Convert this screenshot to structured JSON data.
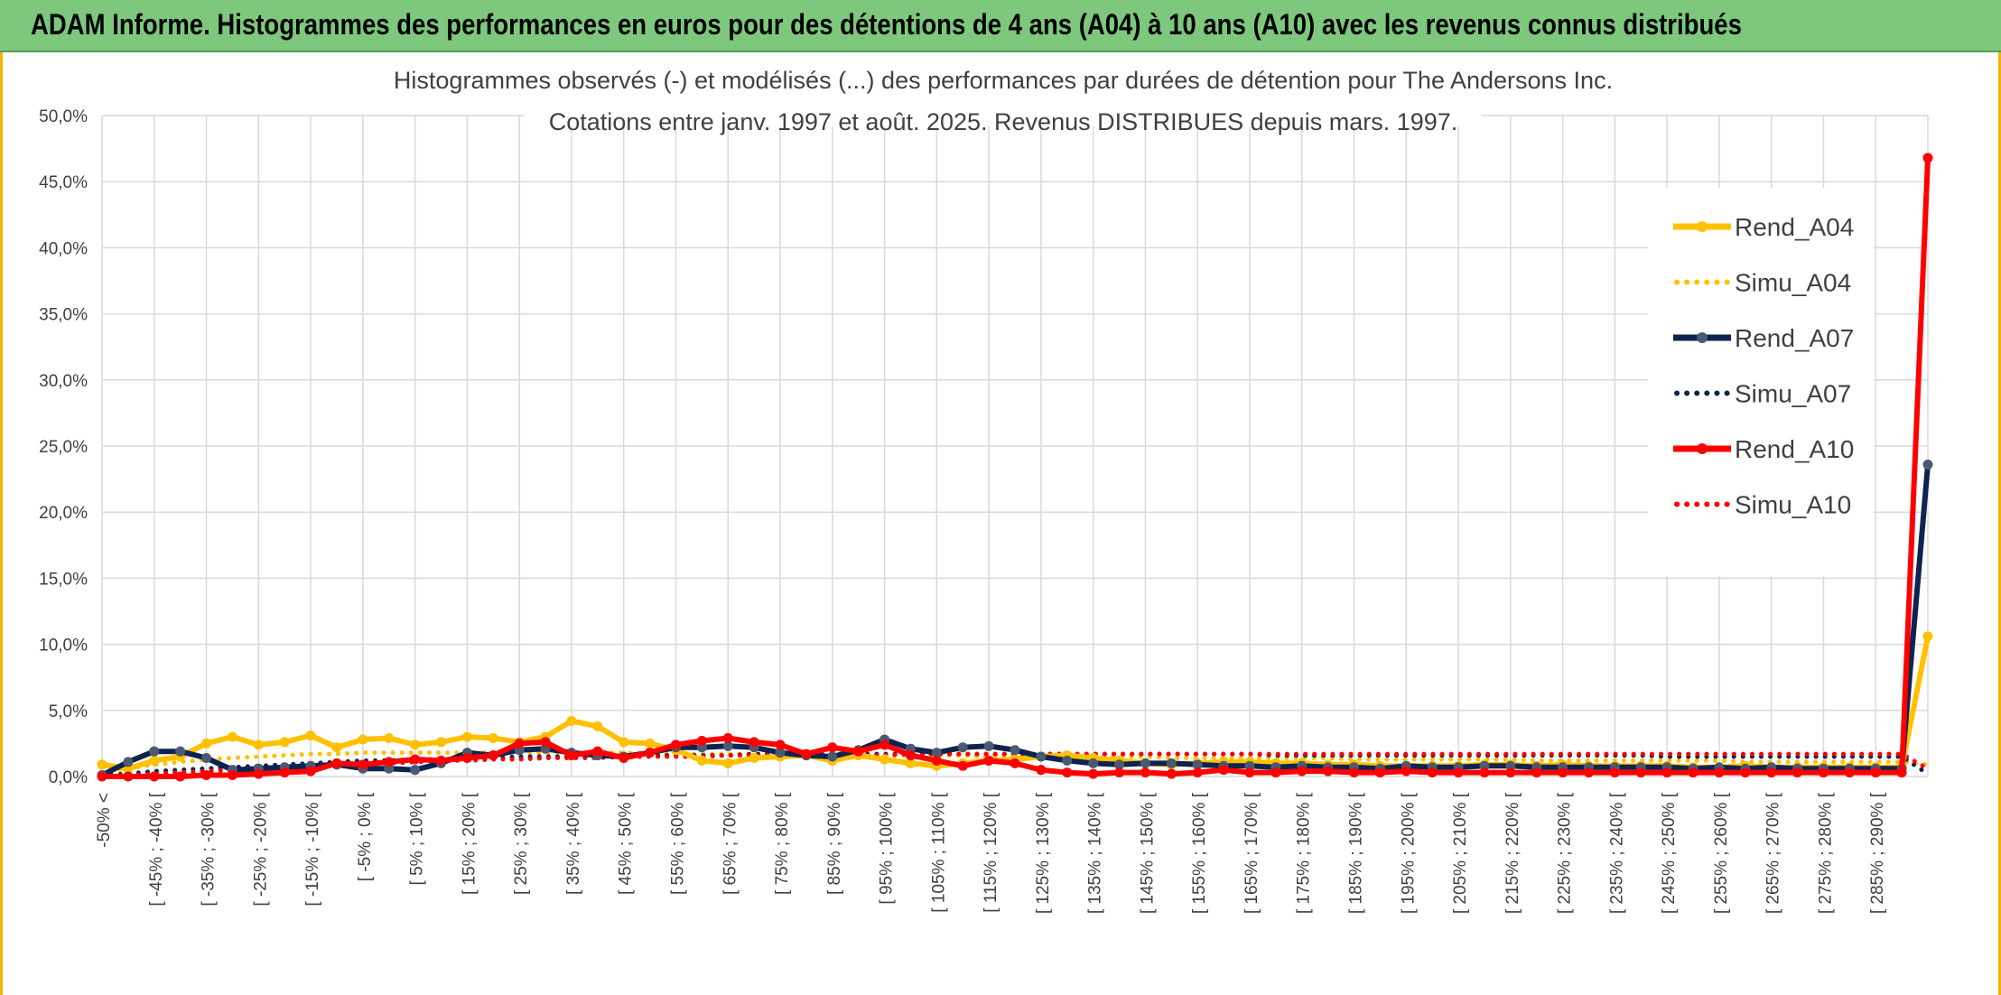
{
  "banner": {
    "title": "ADAM Informe. Histogrammes des performances en euros pour des détentions de 4 ans (A04) à 10 ans (A10) avec les revenus connus distribués"
  },
  "chart_data": {
    "type": "line",
    "title_lines": [
      "Histogrammes observés (-) et modélisés (...) des performances par durées de détention pour The Andersons Inc.",
      "Cotations entre janv. 1997 et août. 2025. Revenus DISTRIBUES depuis mars. 1997."
    ],
    "xlabel": "",
    "ylabel": "",
    "ylim": [
      0,
      50
    ],
    "y_ticks": [
      "0,0%",
      "5,0%",
      "10,0%",
      "15,0%",
      "20,0%",
      "25,0%",
      "30,0%",
      "35,0%",
      "40,0%",
      "45,0%",
      "50,0%"
    ],
    "legend_position": "right",
    "grid": true,
    "x_tick_labels": [
      "-50% <",
      "[ -45% ; -40% [",
      "[ -35% ; -30% [",
      "[ -25% ; -20% [",
      "[ -15% ; -10% [",
      "[ -5% ; 0% [",
      "[ 5% ; 10% [",
      "[ 15% ; 20% [",
      "[ 25% ; 30% [",
      "[ 35% ; 40% [",
      "[ 45% ; 50% [",
      "[ 55% ; 60% [",
      "[ 65% ; 70% [",
      "[ 75% ; 80% [",
      "[ 85% ; 90% [",
      "[ 95% ; 100% [",
      "[ 105% ; 110% [",
      "[ 115% ; 120% [",
      "[ 125% ; 130% [",
      "[ 135% ; 140% [",
      "[ 145% ; 150% [",
      "[ 155% ; 160% [",
      "[ 165% ; 170% [",
      "[ 175% ; 180% [",
      "[ 185% ; 190% [",
      "[ 195% ; 200% [",
      "[ 205% ; 210% [",
      "[ 215% ; 220% [",
      "[ 225% ; 230% [",
      "[ 235% ; 240% [",
      "[ 245% ; 250% [",
      "[ 255% ; 260% [",
      "[ 265% ; 270% [",
      "[ 275% ; 280% [",
      "[ 285% ; 290% ["
    ],
    "num_points": 71,
    "series": [
      {
        "name": "Rend_A04",
        "style": "solid",
        "color": "#FFC000",
        "values": [
          0.9,
          0.6,
          1.2,
          1.5,
          2.5,
          3.0,
          2.4,
          2.6,
          3.1,
          2.2,
          2.8,
          2.9,
          2.4,
          2.6,
          3.0,
          2.9,
          2.6,
          3.0,
          4.2,
          3.8,
          2.6,
          2.5,
          2.0,
          1.2,
          1.0,
          1.4,
          1.5,
          1.6,
          1.2,
          1.6,
          1.3,
          1.0,
          0.8,
          1.0,
          1.2,
          1.3,
          1.5,
          1.6,
          1.4,
          1.2,
          1.0,
          0.9,
          1.0,
          1.1,
          1.1,
          1.0,
          1.0,
          0.9,
          0.9,
          0.8,
          0.8,
          0.8,
          0.8,
          0.9,
          0.9,
          0.8,
          0.9,
          0.8,
          0.8,
          0.8,
          0.8,
          0.7,
          0.7,
          0.8,
          0.7,
          0.7,
          0.7,
          0.7,
          0.7,
          0.7,
          10.6
        ]
      },
      {
        "name": "Simu_A04",
        "style": "dotted",
        "color": "#FFC000",
        "values": [
          0.3,
          0.6,
          0.9,
          1.1,
          1.3,
          1.4,
          1.5,
          1.6,
          1.7,
          1.7,
          1.8,
          1.8,
          1.8,
          1.8,
          1.8,
          1.8,
          1.8,
          1.8,
          1.8,
          1.8,
          1.8,
          1.7,
          1.7,
          1.7,
          1.7,
          1.7,
          1.7,
          1.6,
          1.6,
          1.6,
          1.6,
          1.6,
          1.6,
          1.6,
          1.5,
          1.5,
          1.5,
          1.5,
          1.5,
          1.5,
          1.5,
          1.4,
          1.4,
          1.4,
          1.4,
          1.4,
          1.4,
          1.4,
          1.3,
          1.3,
          1.3,
          1.3,
          1.3,
          1.3,
          1.3,
          1.2,
          1.2,
          1.2,
          1.2,
          1.2,
          1.2,
          1.2,
          1.2,
          1.1,
          1.1,
          1.1,
          1.1,
          1.1,
          1.1,
          1.1,
          0.9
        ]
      },
      {
        "name": "Rend_A07",
        "style": "solid",
        "color": "#0F2350",
        "values": [
          0.1,
          1.1,
          1.9,
          1.9,
          1.4,
          0.5,
          0.6,
          0.7,
          0.8,
          0.9,
          0.6,
          0.6,
          0.5,
          1.0,
          1.8,
          1.6,
          2.0,
          2.1,
          1.8,
          1.6,
          1.5,
          1.8,
          2.2,
          2.2,
          2.3,
          2.2,
          1.8,
          1.6,
          1.5,
          2.0,
          2.8,
          2.1,
          1.8,
          2.2,
          2.3,
          2.0,
          1.5,
          1.2,
          1.0,
          0.9,
          1.0,
          1.0,
          0.9,
          0.8,
          0.8,
          0.7,
          0.8,
          0.7,
          0.7,
          0.6,
          0.8,
          0.7,
          0.7,
          0.8,
          0.8,
          0.7,
          0.7,
          0.7,
          0.7,
          0.7,
          0.7,
          0.6,
          0.7,
          0.6,
          0.7,
          0.6,
          0.6,
          0.6,
          0.6,
          0.6,
          23.6
        ]
      },
      {
        "name": "Simu_A07",
        "style": "dotted",
        "color": "#0F2350",
        "values": [
          0.1,
          0.2,
          0.4,
          0.5,
          0.6,
          0.7,
          0.8,
          0.9,
          1.0,
          1.1,
          1.2,
          1.2,
          1.3,
          1.3,
          1.4,
          1.4,
          1.5,
          1.5,
          1.5,
          1.6,
          1.6,
          1.6,
          1.6,
          1.6,
          1.6,
          1.7,
          1.7,
          1.7,
          1.7,
          1.7,
          1.7,
          1.7,
          1.7,
          1.7,
          1.7,
          1.7,
          1.7,
          1.7,
          1.7,
          1.7,
          1.7,
          1.7,
          1.7,
          1.7,
          1.7,
          1.6,
          1.6,
          1.6,
          1.6,
          1.6,
          1.6,
          1.6,
          1.6,
          1.6,
          1.6,
          1.6,
          1.6,
          1.6,
          1.6,
          1.6,
          1.5,
          1.5,
          1.5,
          1.5,
          1.5,
          1.5,
          1.5,
          1.5,
          1.5,
          1.5,
          0.2
        ]
      },
      {
        "name": "Rend_A10",
        "style": "solid",
        "color": "#FF0000",
        "values": [
          0.0,
          0.0,
          0.0,
          0.0,
          0.1,
          0.1,
          0.2,
          0.3,
          0.4,
          1.0,
          0.9,
          1.1,
          1.3,
          1.2,
          1.4,
          1.6,
          2.5,
          2.6,
          1.6,
          1.9,
          1.4,
          1.8,
          2.4,
          2.7,
          2.9,
          2.6,
          2.4,
          1.7,
          2.2,
          1.9,
          2.4,
          1.6,
          1.2,
          0.8,
          1.2,
          1.0,
          0.5,
          0.3,
          0.2,
          0.3,
          0.3,
          0.2,
          0.3,
          0.5,
          0.3,
          0.3,
          0.4,
          0.4,
          0.3,
          0.3,
          0.4,
          0.3,
          0.3,
          0.3,
          0.3,
          0.3,
          0.3,
          0.3,
          0.3,
          0.3,
          0.3,
          0.3,
          0.3,
          0.3,
          0.3,
          0.3,
          0.3,
          0.3,
          0.3,
          0.3,
          46.8
        ]
      },
      {
        "name": "Simu_A10",
        "style": "dotted",
        "color": "#FF0000",
        "values": [
          0.0,
          0.1,
          0.2,
          0.3,
          0.4,
          0.5,
          0.6,
          0.7,
          0.8,
          0.9,
          1.0,
          1.0,
          1.1,
          1.2,
          1.2,
          1.3,
          1.3,
          1.4,
          1.4,
          1.4,
          1.5,
          1.5,
          1.5,
          1.5,
          1.6,
          1.6,
          1.6,
          1.6,
          1.6,
          1.6,
          1.6,
          1.7,
          1.7,
          1.7,
          1.7,
          1.7,
          1.7,
          1.7,
          1.7,
          1.7,
          1.7,
          1.7,
          1.7,
          1.7,
          1.7,
          1.7,
          1.7,
          1.7,
          1.7,
          1.7,
          1.7,
          1.7,
          1.7,
          1.7,
          1.7,
          1.7,
          1.7,
          1.7,
          1.7,
          1.7,
          1.7,
          1.7,
          1.7,
          1.7,
          1.7,
          1.7,
          1.7,
          1.7,
          1.7,
          1.7,
          0.6
        ]
      }
    ]
  }
}
